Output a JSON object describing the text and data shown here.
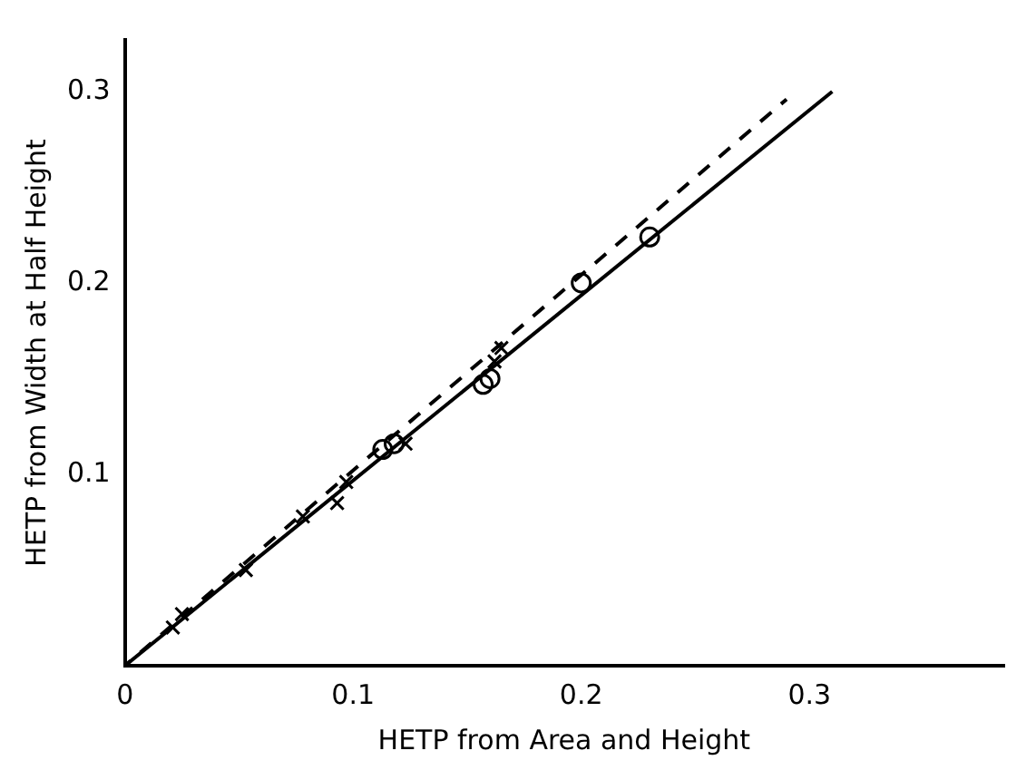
{
  "chart_data": {
    "type": "scatter",
    "xlabel": "HETP from Area and Height",
    "ylabel": "HETP from Width at Half Height",
    "xlim": [
      0,
      0.385
    ],
    "ylim": [
      0,
      0.327
    ],
    "xticks": [
      0,
      0.1,
      0.2,
      0.3
    ],
    "yticks": [
      0.1,
      0.2,
      0.3
    ],
    "grid": false,
    "legend": false,
    "series": [
      {
        "type": "scatter",
        "marker": "cross",
        "color": "#000000",
        "x": [
          0.021,
          0.025,
          0.053,
          0.078,
          0.093,
          0.097,
          0.123,
          0.162,
          0.165
        ],
        "values": [
          0.02,
          0.027,
          0.05,
          0.078,
          0.085,
          0.096,
          0.116,
          0.159,
          0.166
        ]
      },
      {
        "type": "scatter",
        "marker": "circle",
        "color": "#000000",
        "x": [
          0.113,
          0.118,
          0.157,
          0.16,
          0.2,
          0.23
        ],
        "values": [
          0.113,
          0.116,
          0.147,
          0.15,
          0.2,
          0.224
        ]
      },
      {
        "type": "line",
        "marker": "none",
        "line_style": "solid",
        "color": "#000000",
        "x": [
          0,
          0.31
        ],
        "values": [
          0,
          0.3
        ]
      },
      {
        "type": "line",
        "marker": "none",
        "line_style": "dashed",
        "color": "#000000",
        "x": [
          0,
          0.29
        ],
        "values": [
          0,
          0.296
        ]
      }
    ]
  }
}
